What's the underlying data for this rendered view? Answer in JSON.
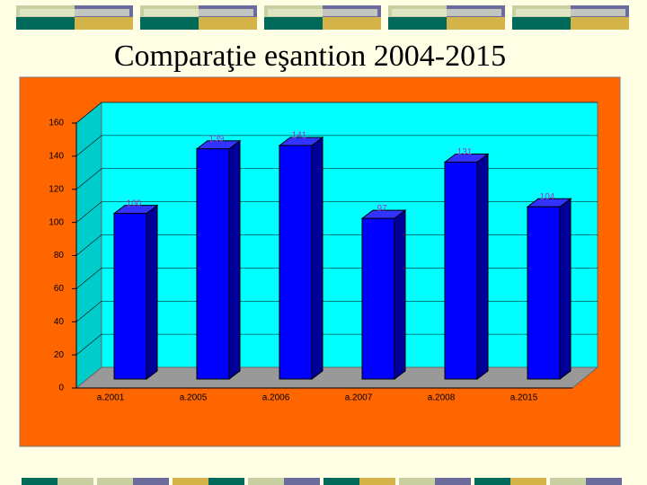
{
  "chart_data": {
    "type": "bar",
    "title": "Comparaţie eşantion 2004-2015",
    "categories": [
      "a.2001",
      "a.2005",
      "a.2006",
      "a.2007",
      "a.2008",
      "a.2015"
    ],
    "values": [
      100,
      139,
      141,
      97,
      131,
      104
    ],
    "color": "#0000ff",
    "ylim": [
      0,
      160
    ],
    "yticks": [
      0,
      20,
      40,
      60,
      80,
      100,
      120,
      140,
      160
    ],
    "grid": true
  }
}
